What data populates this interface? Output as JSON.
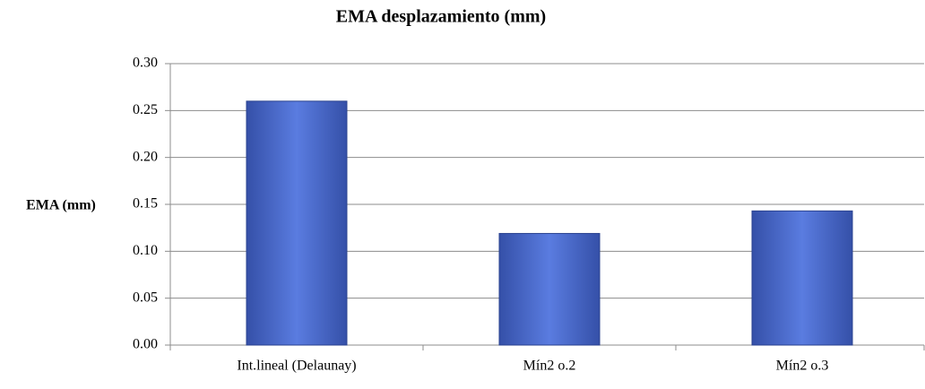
{
  "chart_data": {
    "type": "bar",
    "title": "EMA desplazamiento (mm)",
    "y_label": "EMA (mm)",
    "categories": [
      "Int.lineal (Delaunay)",
      "Mín2 o.2",
      "Mín2 o.3"
    ],
    "values": [
      0.26,
      0.119,
      0.143
    ],
    "color": "#4a6bd0",
    "ylim": [
      0,
      0.3
    ],
    "yticks": [
      {
        "value": 0,
        "label": "0.00"
      },
      {
        "value": 0.05,
        "label": "0.05"
      },
      {
        "value": 0.1,
        "label": "0.10"
      },
      {
        "value": 0.15,
        "label": "0.15"
      },
      {
        "value": 0.2,
        "label": "0.20"
      },
      {
        "value": 0.25,
        "label": "0.25"
      },
      {
        "value": 0.3,
        "label": "0.30"
      }
    ],
    "grid": true
  }
}
